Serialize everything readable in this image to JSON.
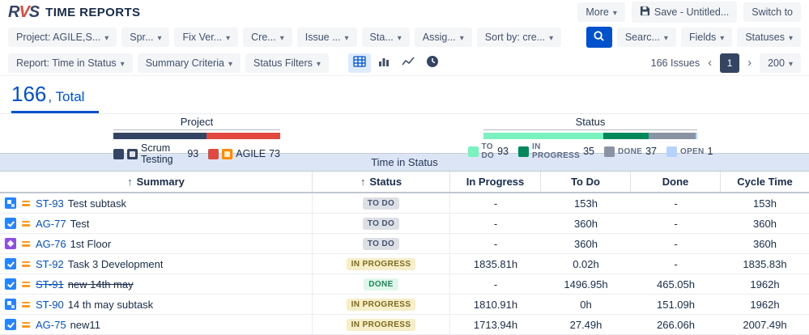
{
  "app": {
    "mark_letters": [
      "R",
      "V",
      "S"
    ],
    "logo_title": "TIME REPORTS",
    "more_button": "More",
    "save_button": "Save - Untitled...",
    "switch_button": "Switch to"
  },
  "filter_bar": {
    "left": [
      "Project: AGILE,S...",
      "Spr...",
      "Fix Ver...",
      "Cre...",
      "Issue ...",
      "Sta...",
      "Assig...",
      "Sort by: cre..."
    ],
    "right": [
      "Searc...",
      "Fields",
      "Statuses"
    ]
  },
  "report_bar": {
    "buttons": [
      "Report: Time in Status",
      "Summary Criteria",
      "Status Filters"
    ],
    "issues_count": "166 Issues",
    "prev": "‹",
    "page": "1",
    "next": "›",
    "page_size": "200"
  },
  "summary_tab": {
    "count": "166",
    "label": ", Total"
  },
  "section_title": "Time in Status",
  "colors": {
    "accent": "#0052CC",
    "navy": "#344563",
    "brand_red": "#E2483D"
  },
  "charts": [
    {
      "type": "stacked_bar",
      "title": "Project",
      "legend_style": "project",
      "total": 166,
      "segments": [
        {
          "label": "Scrum Testing",
          "count": 93,
          "color": "#344563",
          "avatar_color": "#344563"
        },
        {
          "label": "AGILE",
          "count": 73,
          "color": "#E2483D",
          "avatar_color": "#FF8B00"
        }
      ]
    },
    {
      "type": "stacked_bar",
      "title": "Status",
      "legend_style": "status",
      "total": 166,
      "segments": [
        {
          "label": "TO DO",
          "count": 93,
          "color": "#79F2C0"
        },
        {
          "label": "IN PROGRESS",
          "count": 35,
          "color": "#00875A"
        },
        {
          "label": "DONE",
          "count": 37,
          "color": "#8993A4"
        },
        {
          "label": "OPEN",
          "count": 1,
          "color": "#B3D4FF"
        }
      ]
    }
  ],
  "table": {
    "columns": [
      {
        "label": "Summary",
        "sorted": true
      },
      {
        "label": "Status",
        "sorted": true
      },
      {
        "label": "In Progress"
      },
      {
        "label": "To Do"
      },
      {
        "label": "Done"
      },
      {
        "label": "Cycle Time"
      }
    ],
    "rows": [
      {
        "type_icon": "subtask-icon",
        "key": "ST-93",
        "summary": "Test subtask",
        "status": "TO DO",
        "status_kind": "todo",
        "resolved": false,
        "in_progress": "-",
        "to_do": "153h",
        "done": "-",
        "cycle_time": "153h"
      },
      {
        "type_icon": "task-icon",
        "key": "AG-77",
        "summary": "Test",
        "status": "TO DO",
        "status_kind": "todo",
        "resolved": false,
        "in_progress": "-",
        "to_do": "360h",
        "done": "-",
        "cycle_time": "360h"
      },
      {
        "type_icon": "epic-icon",
        "key": "AG-76",
        "summary": "1st Floor",
        "status": "TO DO",
        "status_kind": "todo",
        "resolved": false,
        "in_progress": "-",
        "to_do": "360h",
        "done": "-",
        "cycle_time": "360h"
      },
      {
        "type_icon": "task-icon",
        "key": "ST-92",
        "summary": "Task 3 Development",
        "status": "IN PROGRESS",
        "status_kind": "inprogress",
        "resolved": false,
        "in_progress": "1835.81h",
        "to_do": "0.02h",
        "done": "-",
        "cycle_time": "1835.83h"
      },
      {
        "type_icon": "task-icon",
        "key": "ST-91",
        "summary": "new 14th may",
        "status": "DONE",
        "status_kind": "done",
        "resolved": true,
        "in_progress": "-",
        "to_do": "1496.95h",
        "done": "465.05h",
        "cycle_time": "1962h"
      },
      {
        "type_icon": "subtask-icon",
        "key": "ST-90",
        "summary": "14 th may subtask",
        "status": "IN PROGRESS",
        "status_kind": "inprogress",
        "resolved": false,
        "in_progress": "1810.91h",
        "to_do": "0h",
        "done": "151.09h",
        "cycle_time": "1962h"
      },
      {
        "type_icon": "task-icon",
        "key": "AG-75",
        "summary": "new11",
        "status": "IN PROGRESS",
        "status_kind": "inprogress",
        "resolved": false,
        "in_progress": "1713.94h",
        "to_do": "27.49h",
        "done": "266.06h",
        "cycle_time": "2007.49h"
      }
    ]
  }
}
